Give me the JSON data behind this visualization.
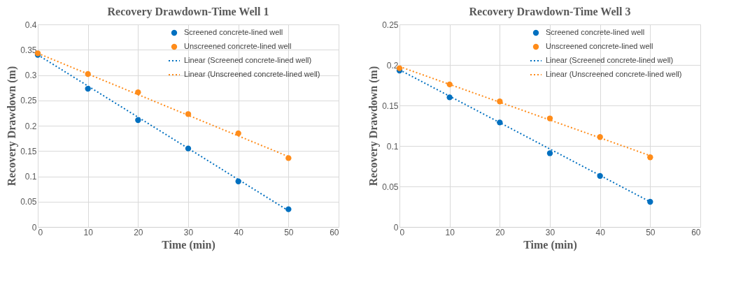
{
  "chart_data": [
    {
      "type": "scatter",
      "title": "Recovery Drawdown-Time Well 1",
      "xlabel": "Time (min)",
      "ylabel": "Recovery Drawdown (m)",
      "xlim": [
        0,
        60
      ],
      "xticks": [
        0,
        10,
        20,
        30,
        40,
        50,
        60
      ],
      "ylim": [
        0,
        0.4
      ],
      "yticks": [
        0,
        0.05,
        0.1,
        0.15,
        0.2,
        0.25,
        0.3,
        0.35,
        0.4
      ],
      "grid": true,
      "legend": "top right",
      "marker": "circle",
      "series": [
        {
          "name": "Screened concrete-lined well",
          "color": "#0070c0",
          "x": [
            0,
            10,
            20,
            30,
            40,
            50
          ],
          "values": [
            0.34,
            0.273,
            0.211,
            0.155,
            0.09,
            0.035
          ]
        },
        {
          "name": "Unscreened concrete-lined well",
          "color": "#ff8c1a",
          "x": [
            0,
            10,
            20,
            30,
            40,
            50
          ],
          "values": [
            0.343,
            0.302,
            0.266,
            0.223,
            0.185,
            0.136
          ]
        },
        {
          "name": "Linear (Screened concrete-lined well)",
          "color": "#0070c0",
          "type": "line",
          "marker": "none",
          "line_style": "dotted",
          "x": [
            0,
            50
          ],
          "values": [
            0.34,
            0.032
          ]
        },
        {
          "name": "Linear (Unscreened concrete-lined well)",
          "color": "#ff8c1a",
          "type": "line",
          "marker": "none",
          "line_style": "dotted",
          "x": [
            0,
            50
          ],
          "values": [
            0.343,
            0.139
          ]
        }
      ]
    },
    {
      "type": "scatter",
      "title": "Recovery Drawdown-Time  Well 3",
      "xlabel": "Time (min)",
      "ylabel": "Recovery Drawdown (m)",
      "xlim": [
        0,
        60
      ],
      "xticks": [
        0,
        10,
        20,
        30,
        40,
        50,
        60
      ],
      "ylim": [
        0,
        0.25
      ],
      "yticks": [
        0,
        0.05,
        0.1,
        0.15,
        0.2,
        0.25
      ],
      "grid": true,
      "legend": "top right",
      "marker": "circle",
      "series": [
        {
          "name": "Screened concrete-lined well",
          "color": "#0070c0",
          "x": [
            0,
            10,
            20,
            30,
            40,
            50
          ],
          "values": [
            0.193,
            0.16,
            0.129,
            0.091,
            0.063,
            0.031
          ]
        },
        {
          "name": "Unscreened concrete-lined well",
          "color": "#ff8c1a",
          "x": [
            0,
            10,
            20,
            30,
            40,
            50
          ],
          "values": [
            0.196,
            0.176,
            0.155,
            0.134,
            0.111,
            0.086
          ]
        },
        {
          "name": "Linear (Screened concrete-lined well)",
          "color": "#0070c0",
          "type": "line",
          "marker": "none",
          "line_style": "dotted",
          "x": [
            0,
            50
          ],
          "values": [
            0.194,
            0.031
          ]
        },
        {
          "name": "Linear (Unscreened concrete-lined well)",
          "color": "#ff8c1a",
          "type": "line",
          "marker": "none",
          "line_style": "dotted",
          "x": [
            0,
            50
          ],
          "values": [
            0.198,
            0.088
          ]
        }
      ]
    }
  ]
}
